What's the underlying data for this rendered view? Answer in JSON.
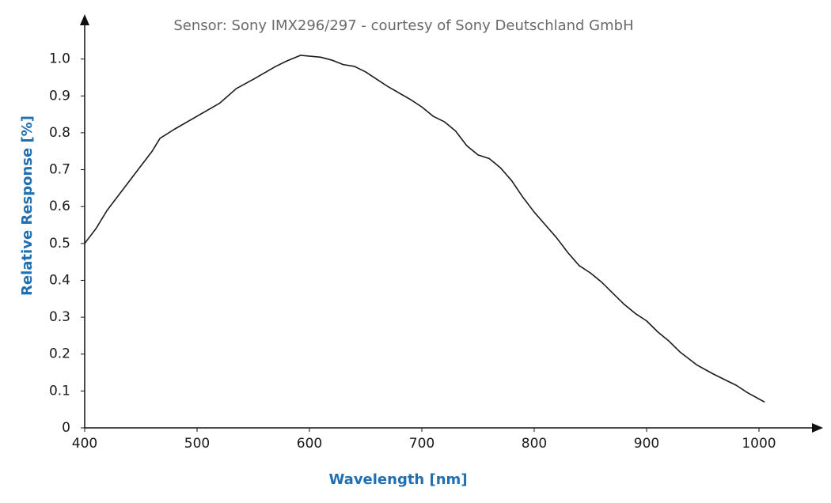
{
  "chart_data": {
    "type": "line",
    "title": "Sensor: Sony IMX296/297 - courtesy of Sony Deutschland GmbH",
    "x_label": "Wavelength [nm]",
    "y_label": "Relative Response [%]",
    "x": [
      400,
      410,
      420,
      440,
      460,
      467,
      480,
      500,
      520,
      535,
      550,
      570,
      580,
      592,
      610,
      620,
      630,
      640,
      650,
      660,
      670,
      690,
      700,
      710,
      720,
      730,
      740,
      750,
      760,
      770,
      780,
      790,
      800,
      810,
      820,
      830,
      840,
      850,
      860,
      870,
      880,
      890,
      900,
      910,
      920,
      930,
      945,
      960,
      980,
      990,
      1005
    ],
    "series": [
      {
        "color": "#1a1a1a",
        "values": [
          0.5,
          0.54,
          0.59,
          0.67,
          0.75,
          0.785,
          0.81,
          0.845,
          0.88,
          0.92,
          0.945,
          0.98,
          0.995,
          1.01,
          1.005,
          0.997,
          0.985,
          0.98,
          0.965,
          0.945,
          0.925,
          0.89,
          0.87,
          0.845,
          0.83,
          0.805,
          0.765,
          0.74,
          0.73,
          0.705,
          0.67,
          0.625,
          0.585,
          0.55,
          0.515,
          0.475,
          0.44,
          0.42,
          0.395,
          0.365,
          0.335,
          0.31,
          0.29,
          0.26,
          0.235,
          0.205,
          0.17,
          0.145,
          0.115,
          0.095,
          0.07
        ]
      }
    ],
    "xlim": [
      400,
      1050
    ],
    "ylim": [
      0,
      1.1
    ],
    "xticks": [
      400,
      500,
      600,
      700,
      800,
      900,
      1000
    ],
    "yticks": [
      0,
      0.1,
      0.2,
      0.3,
      0.4,
      0.5,
      0.6,
      0.7,
      0.8,
      0.9,
      {
        "value": 1,
        "label": "1.0"
      }
    ],
    "grid": false
  }
}
